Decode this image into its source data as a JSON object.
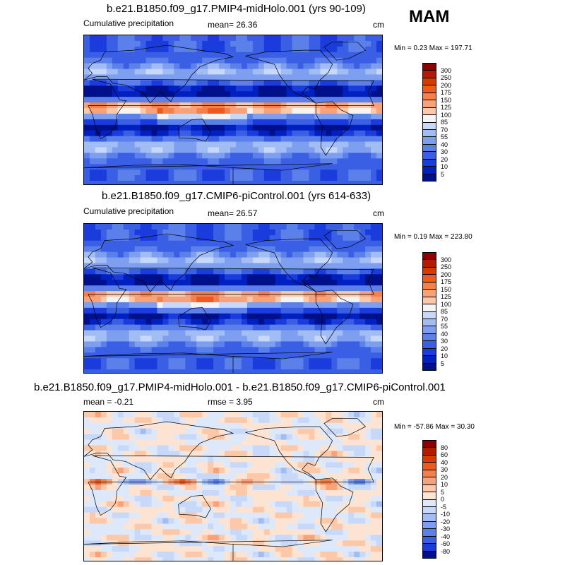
{
  "season": "MAM",
  "panels": [
    {
      "title": "b.e21.B1850.f09_g17.PMIP4-midHolo.001 (yrs 90-109)",
      "left_label": "Cumulative precipitation",
      "mean_label": "mean=  26.36",
      "units": "cm",
      "minmax": "Min =   0.23 Max = 197.71",
      "colorbar": [
        "300",
        "250",
        "200",
        "175",
        "150",
        "125",
        "100",
        "85",
        "70",
        "55",
        "40",
        "30",
        "20",
        "10",
        "5"
      ],
      "colors": [
        "#8b0000",
        "#b51a00",
        "#d63a00",
        "#ee5a1c",
        "#f5804a",
        "#f9a27a",
        "#fcc8a8",
        "#f4f4f4",
        "#c8d8f8",
        "#a2bcf4",
        "#7e9ef0",
        "#5c80ea",
        "#3a5ee4",
        "#1a3cdc",
        "#0020c0",
        "#00108a"
      ],
      "field": "precip"
    },
    {
      "title": "b.e21.B1850.f09_g17.CMIP6-piControl.001 (yrs 614-633)",
      "left_label": "Cumulative precipitation",
      "mean_label": "mean=  26.57",
      "units": "cm",
      "minmax": "Min =   0.19 Max = 223.80",
      "colorbar": [
        "300",
        "250",
        "200",
        "175",
        "150",
        "125",
        "100",
        "85",
        "70",
        "55",
        "40",
        "30",
        "20",
        "10",
        "5"
      ],
      "colors": [
        "#8b0000",
        "#b51a00",
        "#d63a00",
        "#ee5a1c",
        "#f5804a",
        "#f9a27a",
        "#fcc8a8",
        "#f4f4f4",
        "#c8d8f8",
        "#a2bcf4",
        "#7e9ef0",
        "#5c80ea",
        "#3a5ee4",
        "#1a3cdc",
        "#0020c0",
        "#00108a"
      ],
      "field": "precip"
    },
    {
      "title": "b.e21.B1850.f09_g17.PMIP4-midHolo.001 - b.e21.B1850.f09_g17.CMIP6-piControl.001",
      "mean_label": "mean =  -0.21",
      "rmse_label": "rmse =   3.95",
      "units": "cm",
      "minmax": "Min = -57.86 Max =  30.30",
      "colorbar": [
        "80",
        "60",
        "40",
        "30",
        "20",
        "10",
        "5",
        "0",
        "-5",
        "-10",
        "-20",
        "-30",
        "-40",
        "-60",
        "-80"
      ],
      "colors": [
        "#8b0000",
        "#b51a00",
        "#d63a00",
        "#ee5a1c",
        "#f5804a",
        "#f9a27a",
        "#fcc8a8",
        "#fde4d2",
        "#dde9fa",
        "#c8d8f8",
        "#a2bcf4",
        "#7e9ef0",
        "#5c80ea",
        "#3a5ee4",
        "#1a3cdc",
        "#00108a"
      ],
      "field": "diff"
    }
  ]
}
